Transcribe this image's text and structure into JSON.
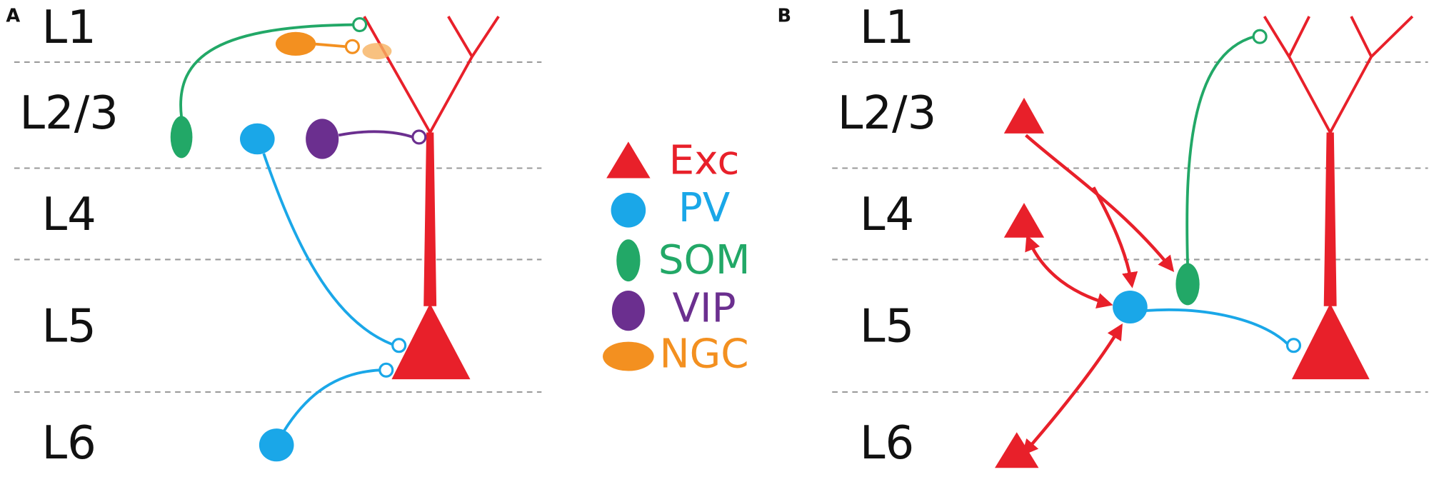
{
  "panels": [
    {
      "label": "A",
      "layers": [
        "L1",
        "L2/3",
        "L4",
        "L5",
        "L6"
      ]
    },
    {
      "label": "B",
      "layers": [
        "L1",
        "L2/3",
        "L4",
        "L5",
        "L6"
      ]
    }
  ],
  "legend": [
    {
      "label": "Exc",
      "color": "#e8202a"
    },
    {
      "label": "PV",
      "color": "#1aa7e8"
    },
    {
      "label": "SOM",
      "color": "#22a867"
    },
    {
      "label": "VIP",
      "color": "#6b2f8f"
    },
    {
      "label": "NGC",
      "color": "#f39020"
    }
  ]
}
